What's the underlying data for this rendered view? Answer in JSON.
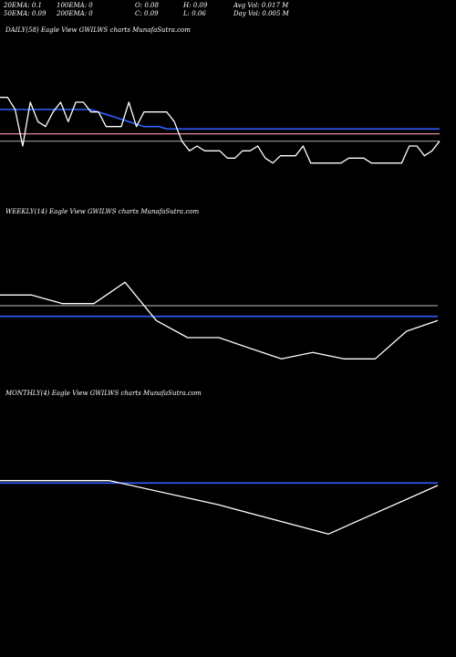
{
  "stats": {
    "row1": [
      "20EMA: 0.1",
      "100EMA: 0",
      "O: 0.08",
      "H: 0.09",
      "Avg Vol: 0.017 M"
    ],
    "row2": [
      "50EMA: 0.09",
      "200EMA: 0",
      "C: 0.09",
      "L: 0.06",
      "Day Vol: 0.005 M"
    ]
  },
  "colors": {
    "background": "#000000",
    "price": "#ffffff",
    "ema_blue": "#3060ff",
    "ema_pink": "#ff9bb0",
    "ema_grey": "#9a9a9a"
  },
  "chart_data": [
    {
      "type": "line",
      "label": "DAILY(58) Eagle  View  GWILWS charts MunafaSutra.com",
      "ylim": [
        0.055,
        0.1
      ],
      "series": [
        {
          "role": "price",
          "values": [
            0.09,
            0.09,
            0.085,
            0.07,
            0.088,
            0.08,
            0.078,
            0.084,
            0.088,
            0.08,
            0.088,
            0.088,
            0.084,
            0.084,
            0.078,
            0.078,
            0.078,
            0.088,
            0.078,
            0.084,
            0.084,
            0.084,
            0.084,
            0.08,
            0.072,
            0.068,
            0.07,
            0.068,
            0.068,
            0.068,
            0.065,
            0.065,
            0.068,
            0.068,
            0.07,
            0.065,
            0.063,
            0.066,
            0.066,
            0.066,
            0.07,
            0.063,
            0.063,
            0.063,
            0.063,
            0.063,
            0.065,
            0.065,
            0.065,
            0.063,
            0.063,
            0.063,
            0.063,
            0.063,
            0.07,
            0.07,
            0.066,
            0.068,
            0.072
          ]
        },
        {
          "role": "ema-blue",
          "values": [
            0.085,
            0.085,
            0.085,
            0.085,
            0.085,
            0.085,
            0.085,
            0.085,
            0.085,
            0.085,
            0.085,
            0.085,
            0.085,
            0.084,
            0.083,
            0.082,
            0.081,
            0.08,
            0.079,
            0.078,
            0.078,
            0.078,
            0.077,
            0.077,
            0.077,
            0.077,
            0.077,
            0.077,
            0.077,
            0.077,
            0.077,
            0.077,
            0.077,
            0.077,
            0.077,
            0.077,
            0.077,
            0.077,
            0.077,
            0.077,
            0.077,
            0.077,
            0.077,
            0.077,
            0.077,
            0.077,
            0.077,
            0.077,
            0.077,
            0.077,
            0.077,
            0.077,
            0.077,
            0.077,
            0.077,
            0.077,
            0.077,
            0.077,
            0.077
          ]
        },
        {
          "role": "ema-pink",
          "values": [
            0.075,
            0.075,
            0.075,
            0.075,
            0.075,
            0.075,
            0.075,
            0.075,
            0.075,
            0.075,
            0.075,
            0.075,
            0.075,
            0.075,
            0.075,
            0.075,
            0.075,
            0.075,
            0.075,
            0.075,
            0.075,
            0.075,
            0.075,
            0.075,
            0.075,
            0.075,
            0.075,
            0.075,
            0.075,
            0.075,
            0.075,
            0.075,
            0.075,
            0.075,
            0.075,
            0.075,
            0.075,
            0.075,
            0.075,
            0.075,
            0.075,
            0.075,
            0.075,
            0.075,
            0.075,
            0.075,
            0.075,
            0.075,
            0.075,
            0.075,
            0.075,
            0.075,
            0.075,
            0.075,
            0.075,
            0.075,
            0.075,
            0.075,
            0.075
          ]
        },
        {
          "role": "ema-grey",
          "values": [
            0.072,
            0.072,
            0.072,
            0.072,
            0.072,
            0.072,
            0.072,
            0.072,
            0.072,
            0.072,
            0.072,
            0.072,
            0.072,
            0.072,
            0.072,
            0.072,
            0.072,
            0.072,
            0.072,
            0.072,
            0.072,
            0.072,
            0.072,
            0.072,
            0.072,
            0.072,
            0.072,
            0.072,
            0.072,
            0.072,
            0.072,
            0.072,
            0.072,
            0.072,
            0.072,
            0.072,
            0.072,
            0.072,
            0.072,
            0.072,
            0.072,
            0.072,
            0.072,
            0.072,
            0.072,
            0.072,
            0.072,
            0.072,
            0.072,
            0.072,
            0.072,
            0.072,
            0.072,
            0.072,
            0.072,
            0.072,
            0.072,
            0.072,
            0.072
          ]
        }
      ]
    },
    {
      "type": "line",
      "label": "WEEKLY(14) Eagle  View  GWILWS charts MunafaSutra.com",
      "ylim": [
        0.055,
        0.1
      ],
      "series": [
        {
          "role": "price",
          "values": [
            0.09,
            0.09,
            0.086,
            0.086,
            0.096,
            0.078,
            0.07,
            0.07,
            0.065,
            0.06,
            0.063,
            0.06,
            0.06,
            0.073,
            0.078
          ]
        },
        {
          "role": "ema-grey",
          "values": [
            0.085,
            0.085,
            0.085,
            0.085,
            0.085,
            0.085,
            0.085,
            0.085,
            0.085,
            0.085,
            0.085,
            0.085,
            0.085,
            0.085,
            0.085
          ]
        },
        {
          "role": "ema-blue",
          "values": [
            0.08,
            0.08,
            0.08,
            0.08,
            0.08,
            0.08,
            0.08,
            0.08,
            0.08,
            0.08,
            0.08,
            0.08,
            0.08,
            0.08,
            0.08
          ]
        }
      ]
    },
    {
      "type": "line",
      "label": "MONTHLY(4) Eagle  View  GWILWS charts MunafaSutra.com",
      "ylim": [
        0.055,
        0.1
      ],
      "series": [
        {
          "role": "price",
          "values": [
            0.09,
            0.09,
            0.08,
            0.068,
            0.088
          ]
        },
        {
          "role": "ema-blue",
          "values": [
            0.089,
            0.089,
            0.089,
            0.089,
            0.089
          ]
        }
      ]
    }
  ]
}
